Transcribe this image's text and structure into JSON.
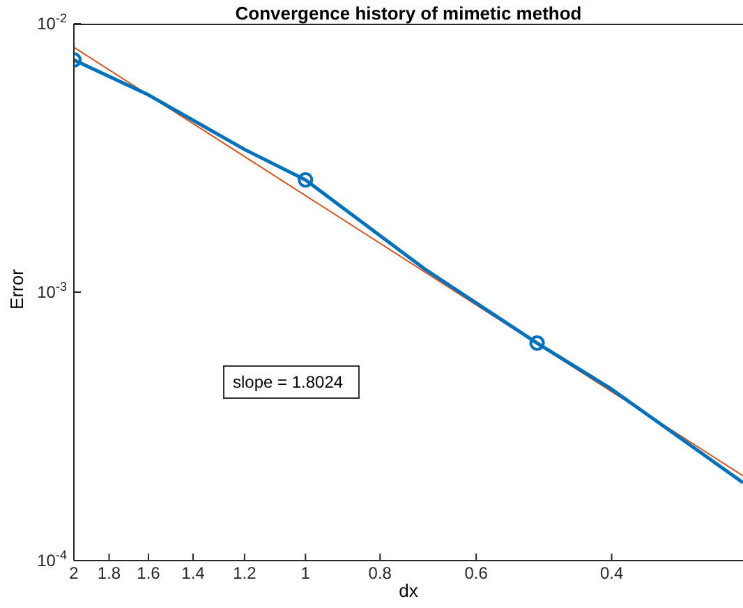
{
  "chart_data": {
    "type": "line",
    "title": "Convergence history of mimetic method",
    "xlabel": "dx",
    "ylabel": "Error",
    "log": "xy",
    "grid": false,
    "xlim": [
      2,
      0.27
    ],
    "xticks": [
      2,
      1.8,
      1.6,
      1.4,
      1.2,
      1,
      0.8,
      0.6,
      0.4
    ],
    "ylim": [
      0.0001,
      0.01
    ],
    "yticks": [
      {
        "value": 0.01,
        "label": "10$^{-2}$"
      },
      {
        "value": 0.001,
        "label": "10$^{-3}$"
      },
      {
        "value": 0.0001,
        "label": "10$^{-4}$"
      }
    ],
    "annotations": [
      "slope = 1.8024"
    ],
    "series": [
      {
        "type": "line",
        "color": "#d95319",
        "marker": "none",
        "x": [
          2,
          0.27
        ],
        "values": [
          0.00817,
          0.000207
        ]
      },
      {
        "type": "line",
        "color": "#0072bd",
        "marker": "none",
        "x": [
          2,
          1.6,
          1.2,
          1,
          0.7,
          0.5,
          0.4,
          0.3,
          0.27
        ],
        "values": [
          0.00733,
          0.00543,
          0.0034,
          0.00262,
          0.00122,
          0.000646,
          0.000435,
          0.000242,
          0.000195
        ]
      },
      {
        "type": "scatter",
        "color": "#0072bd",
        "marker": "circle",
        "x": [
          2,
          1,
          0.5
        ],
        "values": [
          0.00733,
          0.00262,
          0.000646
        ]
      }
    ]
  }
}
